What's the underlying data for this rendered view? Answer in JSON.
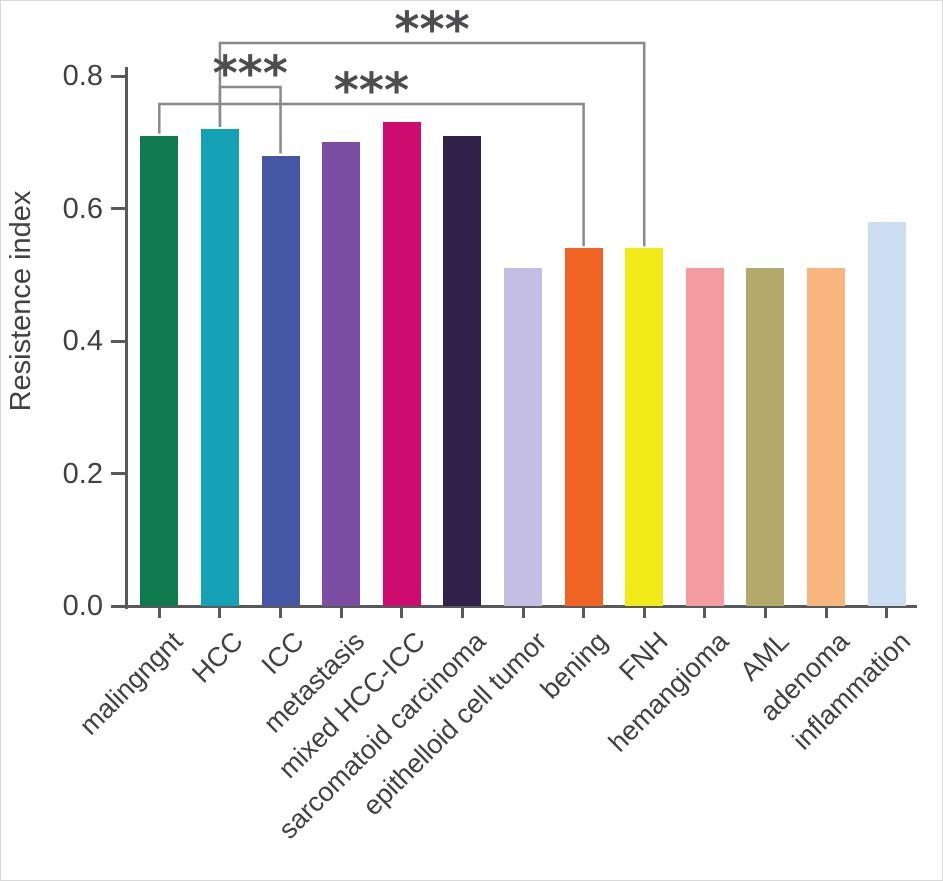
{
  "chart_data": {
    "type": "bar",
    "title": "",
    "xlabel": "",
    "ylabel": "Resistence index",
    "ylim": [
      0,
      0.8
    ],
    "yticks": [
      0.0,
      0.2,
      0.4,
      0.6,
      0.8
    ],
    "ytick_labels": [
      "0.0",
      "0.2",
      "0.4",
      "0.6",
      "0.8"
    ],
    "grid": false,
    "legend": null,
    "categories": [
      "malingngnt",
      "HCC",
      "ICC",
      "metastasis",
      "mixed HCC-ICC",
      "sarcomatoid carcinoma",
      "epithelloid cell tumor",
      "bening",
      "FNH",
      "hemangioma",
      "AML",
      "adenoma",
      "inflammation"
    ],
    "values": [
      0.71,
      0.72,
      0.68,
      0.7,
      0.73,
      0.71,
      0.51,
      0.54,
      0.54,
      0.51,
      0.51,
      0.51,
      0.58
    ],
    "bar_colors": [
      "#0E7A4E",
      "#14A0B5",
      "#4557A4",
      "#7C4EA3",
      "#CE0C6F",
      "#31204A",
      "#C5BEE4",
      "#F06423",
      "#F3EB18",
      "#F59CA1",
      "#B3A96B",
      "#F6B67E",
      "#CBDEF2"
    ],
    "annotations": [
      {
        "type": "significance_bracket",
        "from": "HCC",
        "to": "FNH",
        "label": "***"
      },
      {
        "type": "significance_bracket",
        "from": "HCC",
        "to": "ICC",
        "label": "***"
      },
      {
        "type": "significance_bracket",
        "from": "malingngnt",
        "to": "bening",
        "label": "***"
      }
    ]
  },
  "colors": {
    "axis": "#58595B",
    "text": "#414042",
    "bracket": "#87898C",
    "stars": "#4D4D4F",
    "background": "#FFFFFF"
  }
}
